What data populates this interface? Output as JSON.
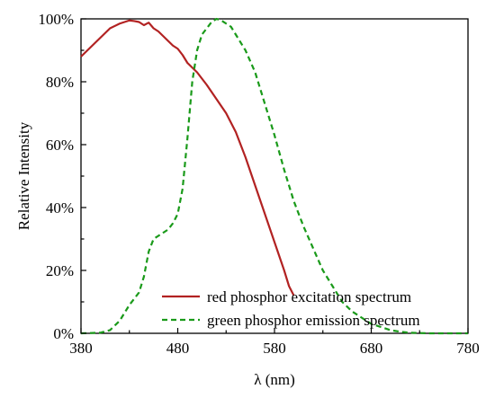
{
  "chart_data": {
    "type": "line",
    "xlabel": "λ (nm)",
    "ylabel": "Relative Intensity",
    "xlim": [
      380,
      780
    ],
    "ylim": [
      0,
      100
    ],
    "x_ticks": [
      380,
      480,
      580,
      680,
      780
    ],
    "y_ticks": [
      0,
      20,
      40,
      60,
      80,
      100
    ],
    "x_tick_labels": [
      "380",
      "480",
      "580",
      "680",
      "780"
    ],
    "y_tick_labels": [
      "0%",
      "20%",
      "40%",
      "60%",
      "80%",
      "100%"
    ],
    "grid": false,
    "legend_position": "bottom-right",
    "series": [
      {
        "name": "red phosphor excitation spectrum",
        "color": "#b22222",
        "style": "solid",
        "x": [
          380,
          390,
          400,
          410,
          420,
          430,
          435,
          440,
          445,
          450,
          455,
          460,
          465,
          470,
          475,
          480,
          485,
          490,
          500,
          510,
          520,
          530,
          540,
          550,
          560,
          570,
          580,
          590,
          595,
          600
        ],
        "y": [
          88,
          91,
          94,
          97,
          98.5,
          99.5,
          99.3,
          99,
          98,
          98.8,
          97,
          96,
          94.5,
          93,
          91.5,
          90.5,
          88.5,
          86,
          83,
          79,
          74.5,
          70,
          64,
          56,
          47,
          38,
          29,
          20,
          15,
          12
        ]
      },
      {
        "name": "green phosphor emission spectrum",
        "color": "#1a9a1a",
        "style": "dashed",
        "x": [
          380,
          400,
          410,
          420,
          430,
          440,
          445,
          450,
          455,
          460,
          465,
          470,
          475,
          480,
          485,
          490,
          495,
          500,
          505,
          510,
          515,
          520,
          525,
          530,
          535,
          540,
          550,
          560,
          570,
          580,
          590,
          600,
          610,
          620,
          630,
          640,
          650,
          660,
          670,
          680,
          690,
          700,
          710,
          720,
          740,
          760,
          780
        ],
        "y": [
          0,
          0.2,
          1,
          4,
          9,
          13,
          18,
          26,
          30,
          31,
          32,
          33,
          35,
          38,
          46,
          62,
          80,
          90,
          95,
          97,
          99,
          100,
          99.5,
          98.5,
          97.5,
          95,
          90,
          83,
          73,
          63,
          52,
          42,
          34,
          27,
          20,
          15,
          10,
          7,
          5,
          3,
          2,
          1,
          0.5,
          0.2,
          0,
          0,
          0
        ]
      }
    ]
  }
}
